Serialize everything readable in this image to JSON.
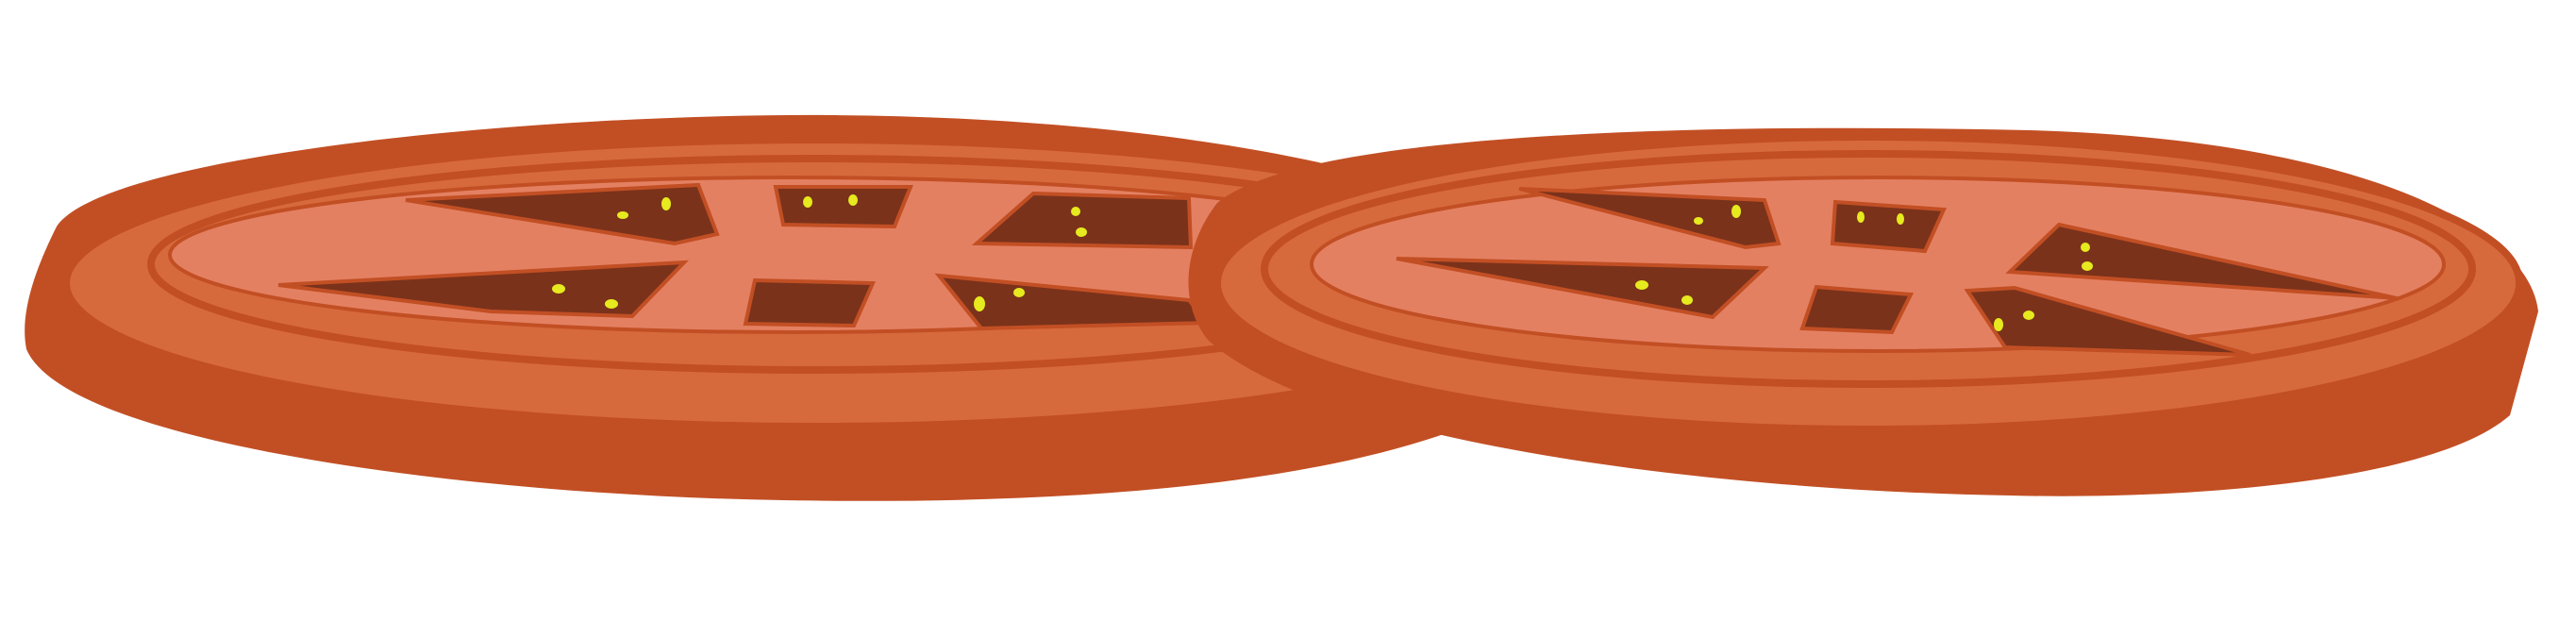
{
  "illustration": {
    "subject": "tomato-slices",
    "count": 2,
    "colors": {
      "background": "#ffffff",
      "outline": "#c24f24",
      "rim": "#d76a3c",
      "flesh": "#e48062",
      "locule": "#7a321b",
      "seed": "#e6ea1e"
    }
  }
}
